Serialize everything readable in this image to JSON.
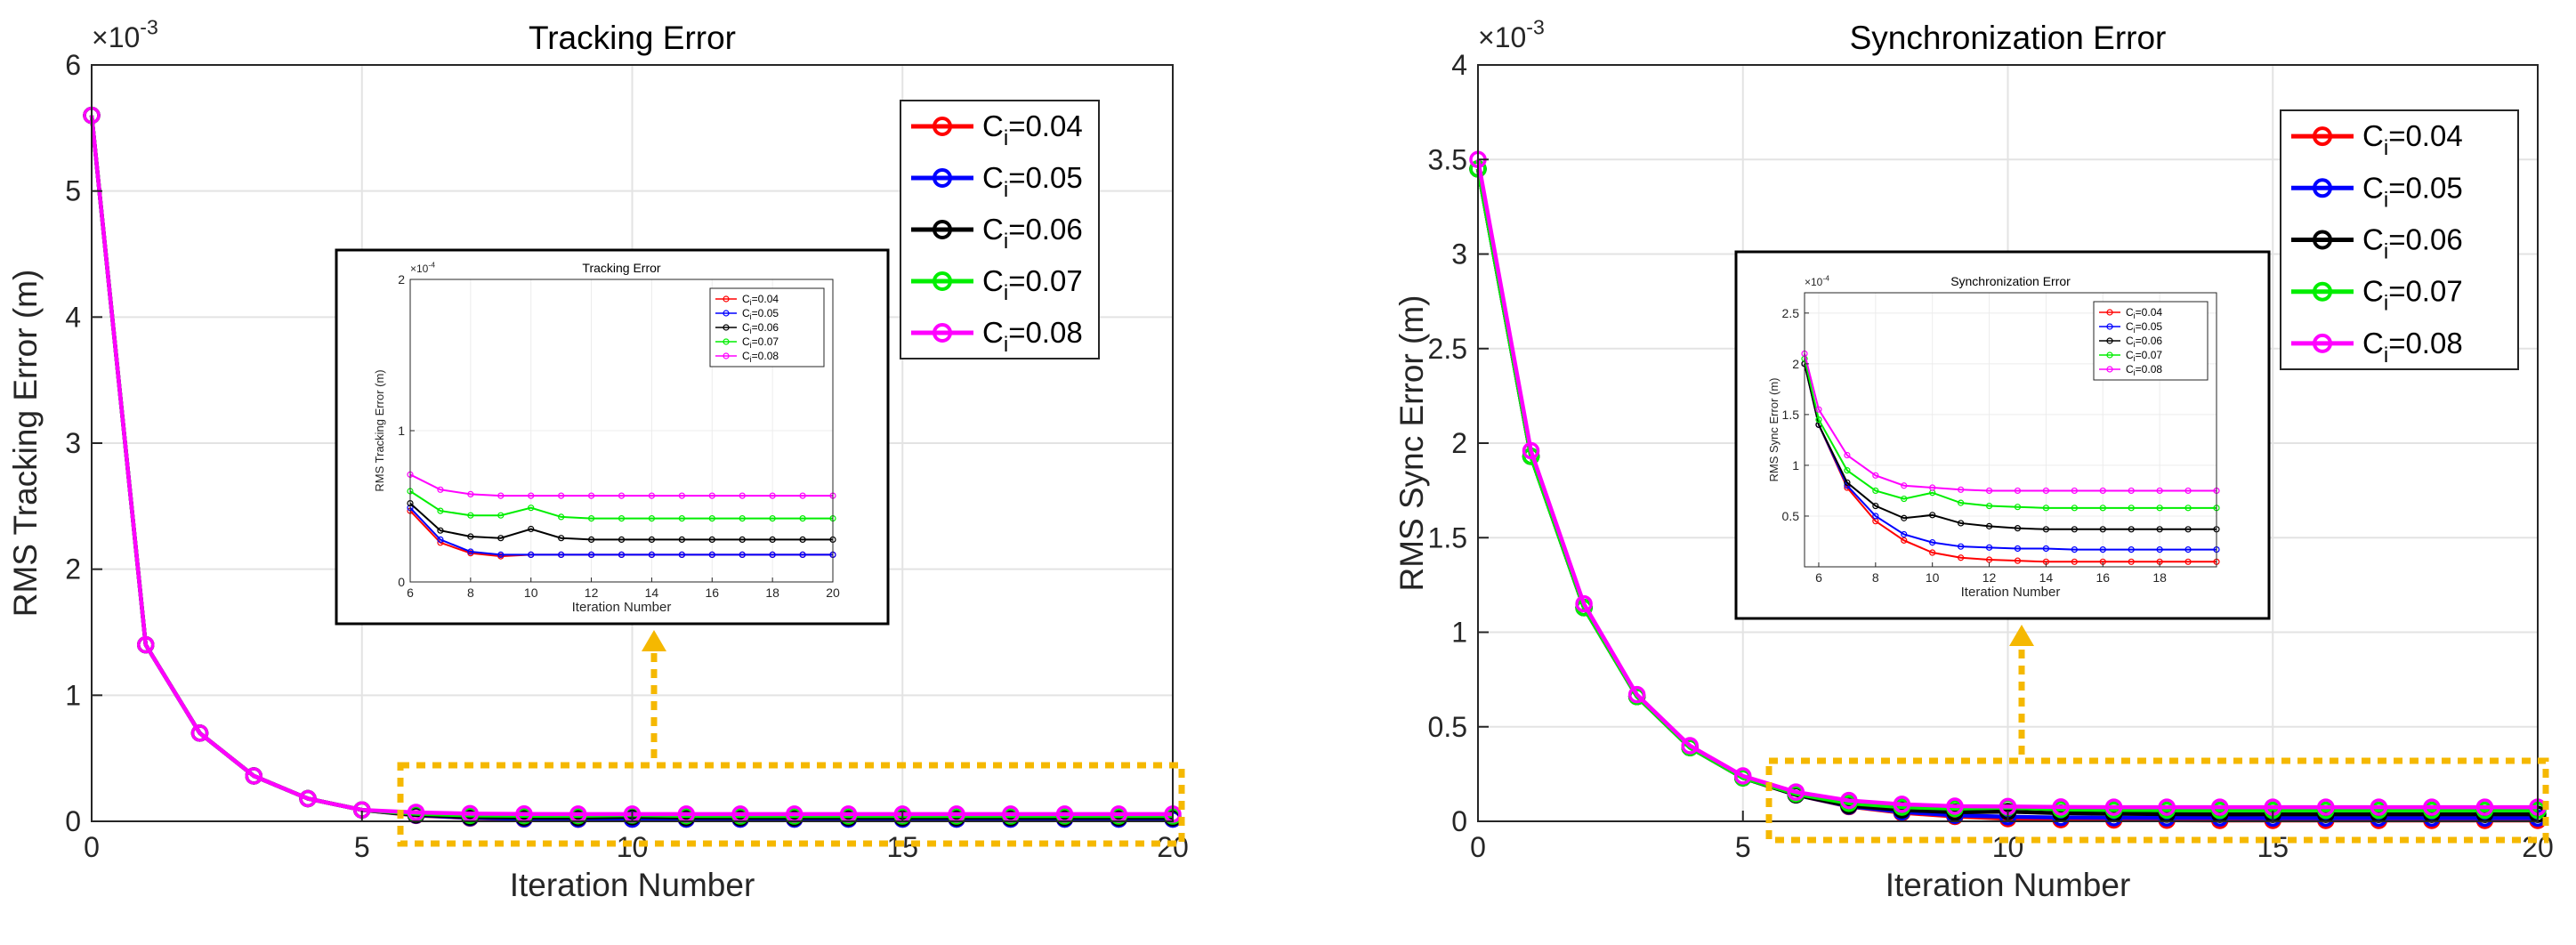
{
  "chart_data": [
    {
      "type": "line",
      "title": "Tracking Error",
      "xlabel": "Iteration Number",
      "ylabel": "RMS Tracking Error (m)",
      "exponent_label": "×10^-3",
      "xlim": [
        0,
        20
      ],
      "ylim": [
        0,
        6
      ],
      "xticks": [
        0,
        5,
        10,
        15,
        20
      ],
      "yticks": [
        0,
        1,
        2,
        3,
        4,
        5,
        6
      ],
      "grid": true,
      "legend_location": "top-right",
      "x": [
        0,
        1,
        2,
        3,
        4,
        5,
        6,
        7,
        8,
        9,
        10,
        11,
        12,
        13,
        14,
        15,
        16,
        17,
        18,
        19,
        20
      ],
      "series": [
        {
          "name": "C_i=0.04",
          "sub_prefix": "C",
          "sub": "i",
          "suffix": "=0.04",
          "color": "#ff0000",
          "values": [
            5.6,
            1.4,
            0.7,
            0.36,
            0.18,
            0.09,
            0.047,
            0.026,
            0.019,
            0.017,
            0.018,
            0.018,
            0.018,
            0.018,
            0.018,
            0.018,
            0.018,
            0.018,
            0.018,
            0.018,
            0.018
          ]
        },
        {
          "name": "C_i=0.05",
          "sub_prefix": "C",
          "sub": "i",
          "suffix": "=0.05",
          "color": "#0000ff",
          "values": [
            5.6,
            1.4,
            0.7,
            0.36,
            0.18,
            0.09,
            0.049,
            0.028,
            0.02,
            0.018,
            0.018,
            0.018,
            0.018,
            0.018,
            0.018,
            0.018,
            0.018,
            0.018,
            0.018,
            0.018,
            0.018
          ]
        },
        {
          "name": "C_i=0.06",
          "sub_prefix": "C",
          "sub": "i",
          "suffix": "=0.06",
          "color": "#000000",
          "values": [
            5.6,
            1.4,
            0.7,
            0.36,
            0.18,
            0.09,
            0.052,
            0.034,
            0.03,
            0.029,
            0.035,
            0.029,
            0.028,
            0.028,
            0.028,
            0.028,
            0.028,
            0.028,
            0.028,
            0.028,
            0.028
          ]
        },
        {
          "name": "C_i=0.07",
          "sub_prefix": "C",
          "sub": "i",
          "suffix": "=0.07",
          "color": "#00ee00",
          "values": [
            5.6,
            1.4,
            0.7,
            0.36,
            0.18,
            0.09,
            0.06,
            0.047,
            0.044,
            0.044,
            0.049,
            0.043,
            0.042,
            0.042,
            0.042,
            0.042,
            0.042,
            0.042,
            0.042,
            0.042,
            0.042
          ]
        },
        {
          "name": "C_i=0.08",
          "sub_prefix": "C",
          "sub": "i",
          "suffix": "=0.08",
          "color": "#ff00ff",
          "values": [
            5.6,
            1.4,
            0.7,
            0.36,
            0.18,
            0.09,
            0.071,
            0.061,
            0.058,
            0.057,
            0.057,
            0.057,
            0.057,
            0.057,
            0.057,
            0.057,
            0.057,
            0.057,
            0.057,
            0.057,
            0.057
          ]
        }
      ],
      "inset": {
        "title": "Tracking Error",
        "xlabel": "Iteration Number",
        "ylabel": "RMS Tracking Error (m)",
        "exponent_label": "×10^-4",
        "xlim": [
          6,
          20
        ],
        "ylim": [
          0,
          2
        ],
        "xticks": [
          6,
          8,
          10,
          12,
          14,
          16,
          18,
          20
        ],
        "yticks": [
          0,
          1,
          2
        ],
        "x": [
          6,
          7,
          8,
          9,
          10,
          11,
          12,
          13,
          14,
          15,
          16,
          17,
          18,
          19,
          20
        ],
        "series": [
          {
            "values": [
              0.47,
              0.26,
              0.19,
              0.17,
              0.18,
              0.18,
              0.18,
              0.18,
              0.18,
              0.18,
              0.18,
              0.18,
              0.18,
              0.18,
              0.18
            ]
          },
          {
            "values": [
              0.49,
              0.28,
              0.2,
              0.18,
              0.18,
              0.18,
              0.18,
              0.18,
              0.18,
              0.18,
              0.18,
              0.18,
              0.18,
              0.18,
              0.18
            ]
          },
          {
            "values": [
              0.52,
              0.34,
              0.3,
              0.29,
              0.35,
              0.29,
              0.28,
              0.28,
              0.28,
              0.28,
              0.28,
              0.28,
              0.28,
              0.28,
              0.28
            ]
          },
          {
            "values": [
              0.6,
              0.47,
              0.44,
              0.44,
              0.49,
              0.43,
              0.42,
              0.42,
              0.42,
              0.42,
              0.42,
              0.42,
              0.42,
              0.42,
              0.42
            ]
          },
          {
            "values": [
              0.71,
              0.61,
              0.58,
              0.57,
              0.57,
              0.57,
              0.57,
              0.57,
              0.57,
              0.57,
              0.57,
              0.57,
              0.57,
              0.57,
              0.57
            ]
          }
        ]
      }
    },
    {
      "type": "line",
      "title": "Synchronization Error",
      "xlabel": "Iteration Number",
      "ylabel": "RMS Sync Error (m)",
      "exponent_label": "×10^-3",
      "xlim": [
        0,
        20
      ],
      "ylim": [
        0,
        4
      ],
      "xticks": [
        0,
        5,
        10,
        15,
        20
      ],
      "yticks": [
        0,
        0.5,
        1,
        1.5,
        2,
        2.5,
        3,
        3.5,
        4
      ],
      "grid": true,
      "legend_location": "top-right",
      "x": [
        0,
        1,
        2,
        3,
        4,
        5,
        6,
        7,
        8,
        9,
        10,
        11,
        12,
        13,
        14,
        15,
        16,
        17,
        18,
        19,
        20
      ],
      "series": [
        {
          "name": "C_i=0.04",
          "sub_prefix": "C",
          "sub": "i",
          "suffix": "=0.04",
          "color": "#ff0000",
          "values": [
            3.45,
            1.93,
            1.13,
            0.66,
            0.39,
            0.23,
            0.14,
            0.078,
            0.045,
            0.026,
            0.014,
            0.009,
            0.007,
            0.006,
            0.005,
            0.005,
            0.005,
            0.005,
            0.005,
            0.005,
            0.005
          ]
        },
        {
          "name": "C_i=0.05",
          "sub_prefix": "C",
          "sub": "i",
          "suffix": "=0.05",
          "color": "#0000ff",
          "values": [
            3.45,
            1.93,
            1.13,
            0.66,
            0.39,
            0.23,
            0.14,
            0.08,
            0.05,
            0.032,
            0.024,
            0.02,
            0.019,
            0.018,
            0.018,
            0.017,
            0.017,
            0.017,
            0.017,
            0.017,
            0.017
          ]
        },
        {
          "name": "C_i=0.06",
          "sub_prefix": "C",
          "sub": "i",
          "suffix": "=0.06",
          "color": "#000000",
          "values": [
            3.45,
            1.93,
            1.13,
            0.66,
            0.39,
            0.23,
            0.14,
            0.083,
            0.06,
            0.048,
            0.051,
            0.043,
            0.04,
            0.038,
            0.037,
            0.037,
            0.037,
            0.037,
            0.037,
            0.037,
            0.037
          ]
        },
        {
          "name": "C_i=0.07",
          "sub_prefix": "C",
          "sub": "i",
          "suffix": "=0.07",
          "color": "#00ee00",
          "values": [
            3.45,
            1.93,
            1.13,
            0.66,
            0.39,
            0.23,
            0.145,
            0.095,
            0.075,
            0.067,
            0.073,
            0.063,
            0.06,
            0.059,
            0.058,
            0.058,
            0.058,
            0.058,
            0.058,
            0.058,
            0.058
          ]
        },
        {
          "name": "C_i=0.08",
          "sub_prefix": "C",
          "sub": "i",
          "suffix": "=0.08",
          "color": "#ff00ff",
          "values": [
            3.5,
            1.96,
            1.15,
            0.67,
            0.4,
            0.24,
            0.155,
            0.11,
            0.09,
            0.08,
            0.078,
            0.076,
            0.075,
            0.075,
            0.075,
            0.075,
            0.075,
            0.075,
            0.075,
            0.075,
            0.075
          ]
        }
      ],
      "inset": {
        "title": "Synchronization Error",
        "xlabel": "Iteration Number",
        "ylabel": "RMS Sync Error (m)",
        "exponent_label": "×10^-4",
        "xlim": [
          5.5,
          20
        ],
        "ylim": [
          0,
          2.7
        ],
        "xticks": [
          6,
          8,
          10,
          12,
          14,
          16,
          18
        ],
        "yticks": [
          0.5,
          1,
          1.5,
          2,
          2.5
        ],
        "x": [
          5.5,
          6,
          7,
          8,
          9,
          10,
          11,
          12,
          13,
          14,
          15,
          16,
          17,
          18,
          19,
          20
        ],
        "series": [
          {
            "values": [
              2.0,
              1.4,
              0.78,
              0.45,
              0.26,
              0.14,
              0.09,
              0.07,
              0.06,
              0.05,
              0.05,
              0.05,
              0.05,
              0.05,
              0.05,
              0.05
            ]
          },
          {
            "values": [
              2.0,
              1.4,
              0.8,
              0.5,
              0.32,
              0.24,
              0.2,
              0.19,
              0.18,
              0.18,
              0.17,
              0.17,
              0.17,
              0.17,
              0.17,
              0.17
            ]
          },
          {
            "values": [
              2.0,
              1.4,
              0.83,
              0.6,
              0.48,
              0.51,
              0.43,
              0.4,
              0.38,
              0.37,
              0.37,
              0.37,
              0.37,
              0.37,
              0.37,
              0.37
            ]
          },
          {
            "values": [
              2.05,
              1.45,
              0.95,
              0.75,
              0.67,
              0.73,
              0.63,
              0.6,
              0.59,
              0.58,
              0.58,
              0.58,
              0.58,
              0.58,
              0.58,
              0.58
            ]
          },
          {
            "values": [
              2.1,
              1.55,
              1.1,
              0.9,
              0.8,
              0.78,
              0.76,
              0.75,
              0.75,
              0.75,
              0.75,
              0.75,
              0.75,
              0.75,
              0.75,
              0.75
            ]
          }
        ]
      }
    }
  ]
}
